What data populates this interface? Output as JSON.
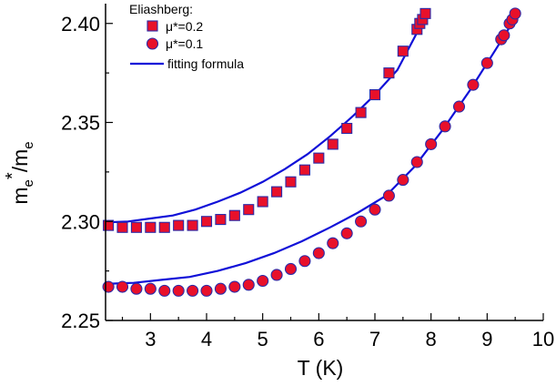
{
  "chart_data": {
    "type": "scatter",
    "xlabel": "T (K)",
    "ylabel_parts": {
      "main": "m",
      "sub1": "e",
      "sup": "*",
      "slash": "/m",
      "sub2": "e"
    },
    "xlim": [
      2.2,
      10.0
    ],
    "ylim": [
      2.25,
      2.41
    ],
    "x_ticks": [
      3,
      4,
      5,
      6,
      7,
      8,
      9,
      10
    ],
    "y_ticks": [
      2.25,
      2.3,
      2.35,
      2.4
    ],
    "legend": {
      "position": "top-left",
      "title": "Eliashberg:",
      "entries": [
        "μ*=0.2",
        "μ*=0.1",
        "fitting formula"
      ]
    },
    "colors": {
      "marker_fill": "#e8102a",
      "marker_edge": "#2a2aa8",
      "fit_line": "#1010d8"
    },
    "series": [
      {
        "name": "μ*=0.2",
        "marker": "square",
        "x": [
          2.25,
          2.5,
          2.75,
          3.0,
          3.25,
          3.5,
          3.75,
          4.0,
          4.25,
          4.5,
          4.75,
          5.0,
          5.25,
          5.5,
          5.75,
          6.0,
          6.25,
          6.5,
          6.75,
          7.0,
          7.25,
          7.5,
          7.75,
          7.8,
          7.85,
          7.9
        ],
        "y": [
          2.298,
          2.297,
          2.297,
          2.297,
          2.297,
          2.298,
          2.298,
          2.3,
          2.301,
          2.303,
          2.306,
          2.31,
          2.315,
          2.32,
          2.326,
          2.332,
          2.339,
          2.347,
          2.355,
          2.364,
          2.375,
          2.386,
          2.397,
          2.4,
          2.402,
          2.405
        ]
      },
      {
        "name": "μ*=0.1",
        "marker": "circle",
        "x": [
          2.25,
          2.5,
          2.75,
          3.0,
          3.25,
          3.5,
          3.75,
          4.0,
          4.25,
          4.5,
          4.75,
          5.0,
          5.25,
          5.5,
          5.75,
          6.0,
          6.25,
          6.5,
          6.75,
          7.0,
          7.25,
          7.5,
          7.75,
          8.0,
          8.25,
          8.5,
          8.75,
          9.0,
          9.25,
          9.3,
          9.4,
          9.45,
          9.5
        ],
        "y": [
          2.267,
          2.267,
          2.266,
          2.266,
          2.265,
          2.265,
          2.265,
          2.265,
          2.266,
          2.267,
          2.268,
          2.27,
          2.273,
          2.276,
          2.28,
          2.284,
          2.289,
          2.294,
          2.3,
          2.306,
          2.313,
          2.321,
          2.33,
          2.339,
          2.348,
          2.358,
          2.369,
          2.38,
          2.392,
          2.394,
          2.4,
          2.402,
          2.405
        ]
      },
      {
        "name": "fitting formula",
        "marker": "line",
        "x": [
          2.2,
          2.6,
          3.0,
          3.4,
          3.8,
          4.2,
          4.6,
          5.0,
          5.4,
          5.8,
          6.2,
          6.6,
          7.0,
          7.4,
          7.8,
          7.95
        ],
        "y": [
          2.2995,
          2.3,
          2.3015,
          2.303,
          2.306,
          2.31,
          2.3145,
          2.32,
          2.3265,
          2.334,
          2.343,
          2.353,
          2.364,
          2.3765,
          2.398,
          2.405
        ]
      },
      {
        "name": "fitting formula",
        "marker": "line",
        "x": [
          2.2,
          2.7,
          3.2,
          3.7,
          4.2,
          4.7,
          5.2,
          5.7,
          6.2,
          6.7,
          7.2,
          7.7,
          8.2,
          8.7,
          9.2,
          9.55
        ],
        "y": [
          2.2685,
          2.269,
          2.2705,
          2.272,
          2.275,
          2.279,
          2.284,
          2.29,
          2.297,
          2.3045,
          2.313,
          2.3275,
          2.346,
          2.3665,
          2.389,
          2.405
        ]
      }
    ]
  }
}
